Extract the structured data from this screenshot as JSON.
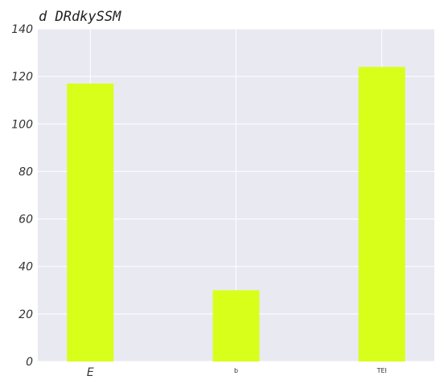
{
  "chart_data": {
    "type": "bar",
    "title": "d DRdkySSM",
    "categories": [
      "E",
      "b",
      "TEI"
    ],
    "values": [
      117,
      30,
      124
    ],
    "xlabel": "",
    "ylabel": "",
    "ylim": [
      0,
      140
    ],
    "yticks": [
      0,
      20,
      40,
      60,
      80,
      100,
      120,
      140
    ],
    "grid": true,
    "colors": {
      "bar": "#d8ff1a",
      "plot_background": "#e9e9f2",
      "grid": "#ffffff"
    }
  }
}
